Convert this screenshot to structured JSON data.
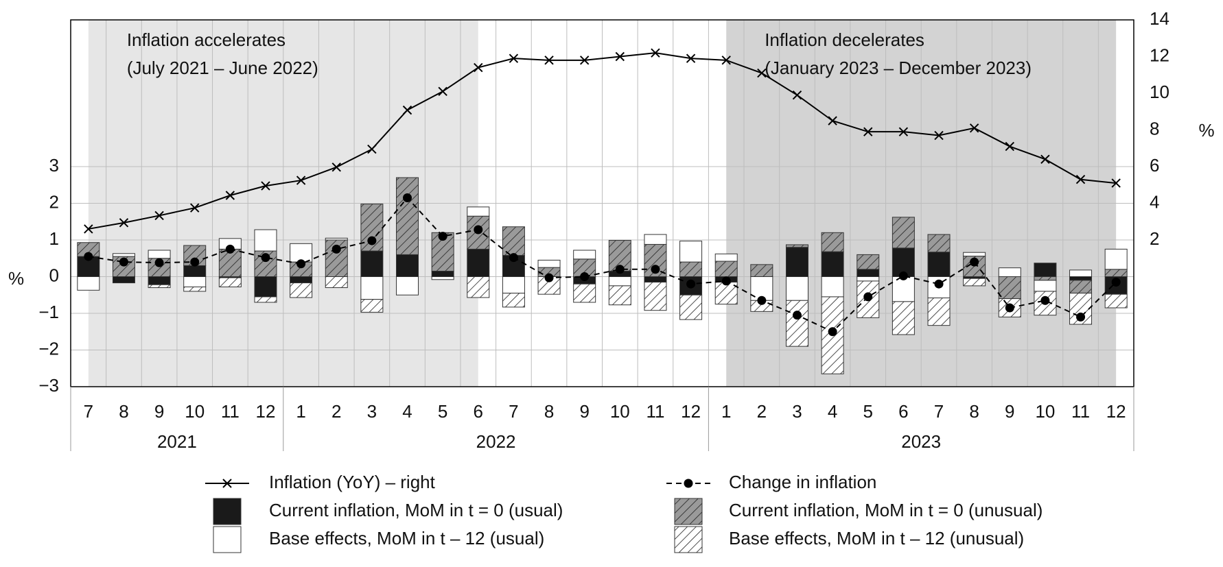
{
  "chart_data": {
    "type": "bar",
    "categories": [
      "7",
      "8",
      "9",
      "10",
      "11",
      "12",
      "1",
      "2",
      "3",
      "4",
      "5",
      "6",
      "7",
      "8",
      "9",
      "10",
      "11",
      "12",
      "1",
      "2",
      "3",
      "4",
      "5",
      "6",
      "7",
      "8",
      "9",
      "10",
      "11",
      "12"
    ],
    "group_labels": [
      "2021",
      null,
      null,
      null,
      null,
      null,
      "2022",
      null,
      null,
      null,
      null,
      null,
      null,
      null,
      null,
      null,
      null,
      null,
      "2023",
      null,
      null,
      null,
      null,
      null,
      null,
      null,
      null,
      null,
      null,
      null
    ],
    "ylabel": "%",
    "y2label": "%",
    "ylim": [
      -3,
      7
    ],
    "yticks": [
      {
        "value": -3,
        "label": "−3"
      },
      {
        "value": -2,
        "label": "−2"
      },
      {
        "value": -1,
        "label": "−1"
      },
      0,
      1,
      2,
      3
    ],
    "y2lim": [
      -6,
      14
    ],
    "y2ticks": [
      2,
      4,
      6,
      8,
      10,
      12,
      14
    ],
    "grid": true,
    "annotations": [
      {
        "lines": [
          "Inflation accelerates",
          "(July 2021 – June 2022)"
        ],
        "from": 0,
        "to": 11,
        "color": "#e6e6e6"
      },
      {
        "lines": [
          "Inflation decelerates",
          "(January 2023 – December 2023)"
        ],
        "from": 18,
        "to": 29,
        "color": "#d3d3d3"
      }
    ],
    "series": [
      {
        "name": "Inflation (YoY) – right",
        "type": "line",
        "axis": "y2",
        "marker": "x",
        "color": "#000000",
        "values": [
          2.6,
          2.94,
          3.33,
          3.75,
          4.43,
          4.95,
          5.25,
          5.97,
          6.95,
          9.08,
          10.1,
          11.4,
          11.9,
          11.8,
          11.8,
          12.0,
          12.2,
          11.9,
          11.8,
          11.1,
          9.9,
          8.5,
          7.9,
          7.9,
          7.7,
          8.1,
          7.1,
          6.4,
          5.3,
          5.1
        ]
      },
      {
        "name": "Change in inflation",
        "type": "line",
        "dashed": true,
        "marker": "dot",
        "color": "#000000",
        "values": [
          0.55,
          0.4,
          0.38,
          0.4,
          0.75,
          0.52,
          0.35,
          0.75,
          0.98,
          2.15,
          1.1,
          1.28,
          0.52,
          -0.03,
          0,
          0.2,
          0.2,
          -0.2,
          -0.12,
          -0.65,
          -1.05,
          -1.5,
          -0.55,
          0.02,
          -0.2,
          0.4,
          -0.85,
          -0.65,
          -1.1,
          -0.15
        ]
      },
      {
        "name": "Current inflation, MoM in t = 0 (usual)",
        "type": "bar",
        "color": "#1a1a1a",
        "values": [
          0.55,
          -0.17,
          -0.22,
          0.3,
          -0.03,
          -0.55,
          -0.17,
          0,
          0.7,
          0.6,
          0.15,
          0.75,
          0.58,
          0,
          -0.2,
          0.15,
          -0.15,
          -0.5,
          -0.15,
          0,
          0.8,
          0.68,
          0.2,
          0.78,
          0.67,
          -0.05,
          0,
          0.37,
          -0.1,
          -0.48
        ]
      },
      {
        "name": "Current inflation, MoM in t = 0 (unusual)",
        "type": "bar",
        "hatch": true,
        "color": "#9a9a9a",
        "values": [
          0.38,
          0.55,
          0.5,
          0.55,
          0.75,
          0.7,
          0.4,
          1.0,
          1.28,
          2.1,
          1.05,
          0.9,
          0.78,
          0.25,
          0.48,
          0.84,
          0.88,
          0.4,
          0.42,
          0.33,
          0.07,
          0.52,
          0.4,
          0.84,
          0.48,
          0.56,
          -0.6,
          -0.1,
          -0.35,
          0.2
        ]
      },
      {
        "name": "Base effects, MoM in t – 12 (usual)",
        "type": "bar",
        "color": "#ffffff",
        "values": [
          -0.37,
          0.08,
          0.22,
          -0.28,
          0.29,
          0.58,
          0.5,
          0.05,
          -0.62,
          -0.5,
          -0.08,
          0.25,
          -0.45,
          0.2,
          0.24,
          -0.25,
          0.27,
          0.57,
          0.2,
          -0.65,
          -0.65,
          -0.55,
          -0.12,
          -0.68,
          -0.58,
          0.1,
          0.24,
          -0.3,
          0.18,
          0.55
        ]
      },
      {
        "name": "Base effects, MoM in t – 12 (unusual)",
        "type": "bar",
        "hatch": true,
        "color": "#ffffff",
        "values": [
          0,
          0,
          -0.08,
          -0.12,
          -0.25,
          -0.15,
          -0.4,
          -0.3,
          -0.35,
          0,
          0,
          -0.57,
          -0.38,
          -0.48,
          -0.5,
          -0.52,
          -0.77,
          -0.67,
          -0.6,
          -0.3,
          -1.25,
          -2.1,
          -1.0,
          -0.9,
          -0.75,
          -0.2,
          -0.5,
          -0.65,
          -0.85,
          -0.37
        ]
      }
    ]
  }
}
